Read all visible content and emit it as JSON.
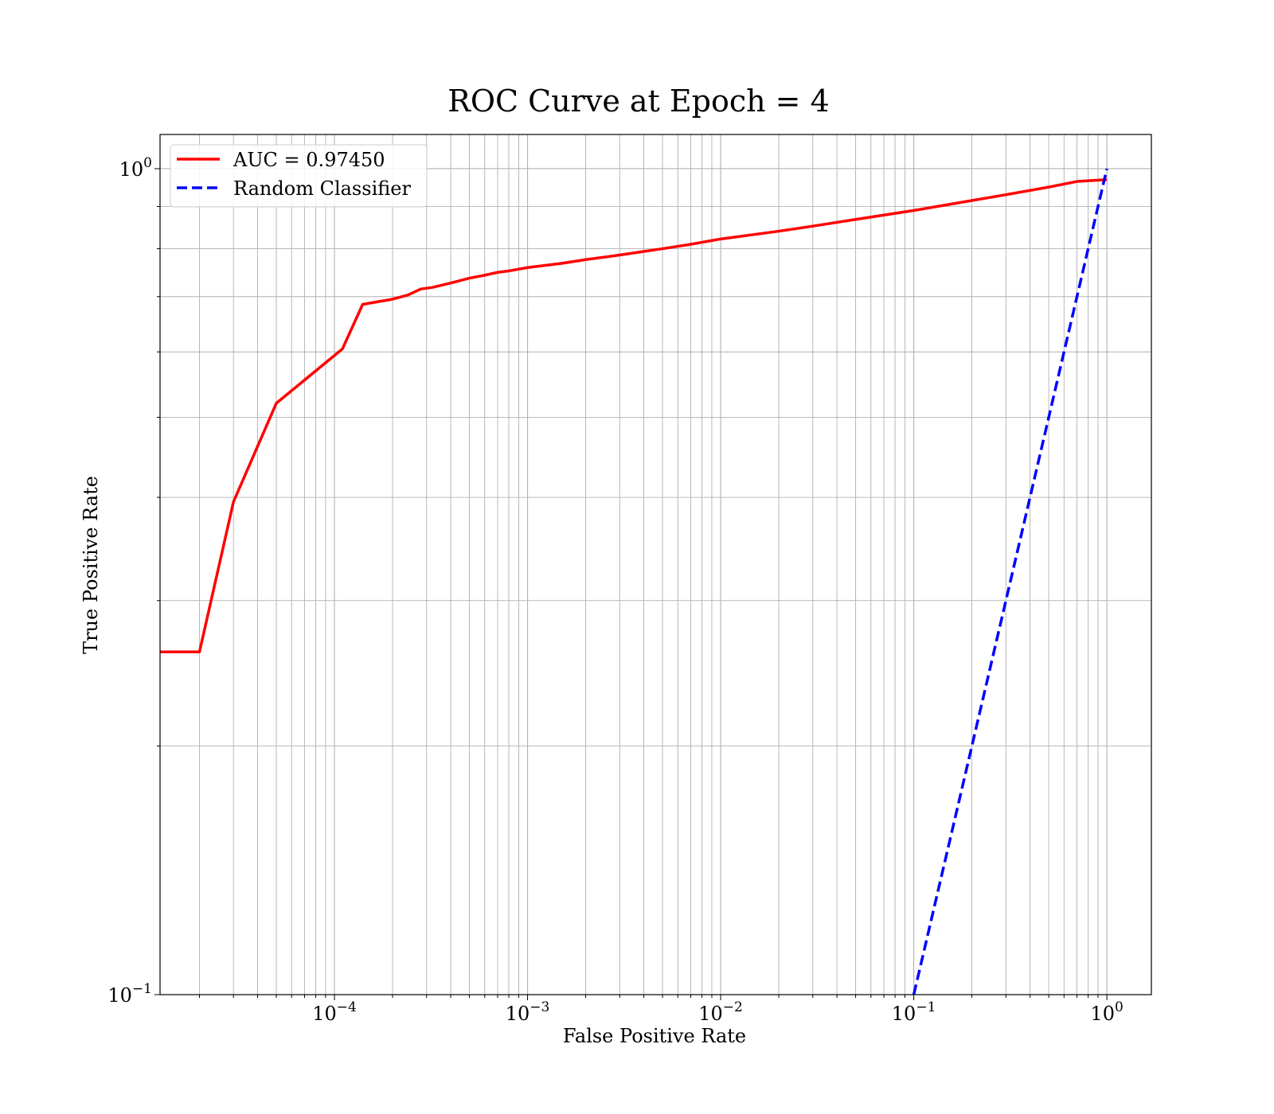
{
  "chart_data": {
    "type": "line",
    "title": "ROC Curve at Epoch = 4",
    "xlabel": "False Positive Rate",
    "ylabel": "True Positive Rate",
    "xscale": "log",
    "yscale": "log",
    "xlim": [
      1.25e-05,
      1.7
    ],
    "ylim": [
      0.1,
      1.1
    ],
    "grid": true,
    "grid_minor": true,
    "legend_position": "top-left",
    "x_ticks": [
      {
        "base": "10",
        "exp": "−4",
        "value": 0.0001
      },
      {
        "base": "10",
        "exp": "−3",
        "value": 0.001
      },
      {
        "base": "10",
        "exp": "−2",
        "value": 0.01
      },
      {
        "base": "10",
        "exp": "−1",
        "value": 0.1
      },
      {
        "base": "10",
        "exp": "0",
        "value": 1
      }
    ],
    "y_ticks": [
      {
        "base": "10",
        "exp": "−1",
        "value": 0.1
      },
      {
        "base": "10",
        "exp": "0",
        "value": 1
      }
    ],
    "series": [
      {
        "name": "AUC = 0.97450",
        "color": "#ff0000",
        "style": "solid",
        "points": [
          [
            1.25e-05,
            0.26
          ],
          [
            2e-05,
            0.26
          ],
          [
            3e-05,
            0.395
          ],
          [
            5e-05,
            0.52
          ],
          [
            0.00011,
            0.605
          ],
          [
            0.00014,
            0.685
          ],
          [
            0.0002,
            0.695
          ],
          [
            0.00024,
            0.703
          ],
          [
            0.00028,
            0.715
          ],
          [
            0.00032,
            0.718
          ],
          [
            0.0004,
            0.727
          ],
          [
            0.0005,
            0.737
          ],
          [
            0.0006,
            0.743
          ],
          [
            0.0007,
            0.749
          ],
          [
            0.0008,
            0.752
          ],
          [
            0.001,
            0.759
          ],
          [
            0.0015,
            0.768
          ],
          [
            0.002,
            0.776
          ],
          [
            0.003,
            0.786
          ],
          [
            0.004,
            0.794
          ],
          [
            0.005,
            0.8
          ],
          [
            0.007,
            0.81
          ],
          [
            0.01,
            0.822
          ],
          [
            0.02,
            0.84
          ],
          [
            0.03,
            0.852
          ],
          [
            0.05,
            0.868
          ],
          [
            0.1,
            0.89
          ],
          [
            0.2,
            0.915
          ],
          [
            0.3,
            0.93
          ],
          [
            0.5,
            0.95
          ],
          [
            0.7,
            0.965
          ],
          [
            1.0,
            0.97
          ]
        ]
      },
      {
        "name": "Random Classifier",
        "color": "#0000ff",
        "style": "dashed",
        "points": [
          [
            0.1,
            0.1
          ],
          [
            1.0,
            1.0
          ]
        ]
      }
    ]
  }
}
